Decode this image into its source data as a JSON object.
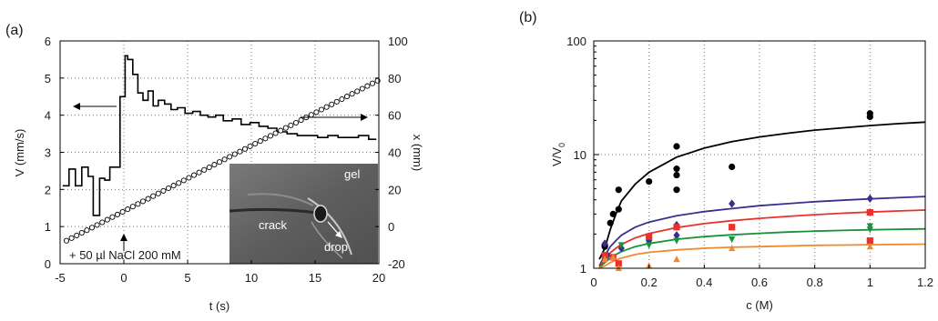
{
  "chart_data": [
    {
      "panel_label": "(a)",
      "type": "line",
      "xlabel": "t (s)",
      "ylabel": "V (mm/s)",
      "y2label": "x (mm)",
      "xlim": [
        -5,
        20
      ],
      "ylim": [
        0,
        6
      ],
      "y2lim": [
        -20,
        100
      ],
      "xticks": [
        -5,
        0,
        5,
        10,
        15,
        20
      ],
      "yticks": [
        0,
        1,
        2,
        3,
        4,
        5,
        6
      ],
      "y2ticks": [
        -20,
        0,
        20,
        40,
        60,
        80,
        100
      ],
      "grid": "dotted vertical and horizontal",
      "annotation": "+ 50 µl NaCl 200 mM",
      "inset_labels": {
        "gel": "gel",
        "crack": "crack",
        "drop": "drop"
      },
      "series": [
        {
          "axis": "left",
          "style": "step",
          "x": [
            -4.8,
            -4.3,
            -4.3,
            -3.8,
            -3.8,
            -3.3,
            -3.3,
            -2.8,
            -2.8,
            -2.4,
            -2.4,
            -1.9,
            -1.9,
            -1.5,
            -1.5,
            -1.1,
            -1.1,
            -0.3,
            -0.3,
            0.1,
            0.1,
            0.3,
            0.3,
            0.7,
            0.7,
            1.1,
            1.1,
            1.5,
            1.5,
            1.9,
            1.9,
            2.3,
            2.3,
            2.7,
            2.7,
            3.2,
            3.2,
            3.7,
            3.7,
            4.2,
            4.2,
            4.8,
            4.8,
            5.4,
            5.4,
            6,
            6,
            6.6,
            6.6,
            7.2,
            7.2,
            7.8,
            7.8,
            8.5,
            8.5,
            9.2,
            9.2,
            9.9,
            9.9,
            10.6,
            10.6,
            11.3,
            11.3,
            12,
            12,
            12.8,
            12.8,
            13.6,
            13.6,
            14.4,
            14.4,
            15.2,
            15.2,
            16,
            16,
            16.8,
            16.8,
            17.6,
            17.6,
            18.4,
            18.4,
            19.2,
            19.2,
            19.8
          ],
          "values": [
            2.1,
            2.1,
            2.55,
            2.55,
            2.1,
            2.1,
            2.6,
            2.6,
            2.35,
            2.35,
            1.3,
            1.3,
            2.3,
            2.3,
            2.25,
            2.25,
            2.6,
            2.6,
            4.5,
            4.5,
            5.6,
            5.6,
            5.5,
            5.5,
            5.1,
            5.1,
            4.6,
            4.6,
            4.4,
            4.4,
            4.65,
            4.65,
            4.25,
            4.25,
            4.4,
            4.4,
            4.3,
            4.3,
            4.15,
            4.15,
            4.2,
            4.2,
            4.05,
            4.05,
            4.1,
            4.1,
            4.0,
            4.0,
            3.95,
            3.95,
            4.0,
            4.0,
            3.85,
            3.85,
            3.9,
            3.9,
            3.75,
            3.75,
            3.8,
            3.8,
            3.7,
            3.7,
            3.65,
            3.65,
            3.55,
            3.55,
            3.5,
            3.5,
            3.45,
            3.45,
            3.45,
            3.45,
            3.4,
            3.4,
            3.45,
            3.45,
            3.4,
            3.4,
            3.4,
            3.4,
            3.45,
            3.45,
            3.35,
            3.35
          ]
        },
        {
          "axis": "right",
          "style": "open-circles",
          "x_start": -4.5,
          "x_step": 0.4,
          "count": 62,
          "y_at_x_start": -7.6,
          "y_slope": 3.53
        }
      ]
    },
    {
      "panel_label": "(b)",
      "type": "scatter",
      "xlabel": "c (M)",
      "ylabel": "V/V",
      "ylabel_sub": "0",
      "xlim": [
        0,
        1.2
      ],
      "ylim": [
        1,
        100
      ],
      "yscale": "log",
      "xticks": [
        "0",
        "0.2",
        "0.4",
        "0.6",
        "0.8",
        "1",
        "1.2"
      ],
      "yticks": [
        "1",
        "10",
        "100"
      ],
      "grid": "dotted vertical and horizontal",
      "series": [
        {
          "color": "#000000",
          "marker": "circle",
          "points": [
            [
              0.04,
              1.6
            ],
            [
              0.04,
              1.55
            ],
            [
              0.06,
              2.5
            ],
            [
              0.07,
              3.0
            ],
            [
              0.09,
              3.3
            ],
            [
              0.09,
              4.9
            ],
            [
              0.2,
              5.8
            ],
            [
              0.3,
              11.8
            ],
            [
              0.3,
              7.5
            ],
            [
              0.3,
              6.6
            ],
            [
              0.3,
              4.9
            ],
            [
              0.5,
              7.8
            ],
            [
              1.0,
              23.0
            ],
            [
              1.0,
              21.5
            ]
          ],
          "curve": [
            [
              0.02,
              1.2
            ],
            [
              0.04,
              1.5
            ],
            [
              0.06,
              2.2
            ],
            [
              0.08,
              3.0
            ],
            [
              0.1,
              3.9
            ],
            [
              0.15,
              5.5
            ],
            [
              0.2,
              7.0
            ],
            [
              0.3,
              9.5
            ],
            [
              0.4,
              11.4
            ],
            [
              0.5,
              13.0
            ],
            [
              0.6,
              14.3
            ],
            [
              0.7,
              15.4
            ],
            [
              0.8,
              16.4
            ],
            [
              0.9,
              17.2
            ],
            [
              1.0,
              18.0
            ],
            [
              1.1,
              18.7
            ],
            [
              1.2,
              19.3
            ]
          ]
        },
        {
          "color": "#3a2f8f",
          "marker": "diamond",
          "points": [
            [
              0.04,
              1.65
            ],
            [
              0.05,
              1.3
            ],
            [
              0.1,
              1.5
            ],
            [
              0.2,
              1.75
            ],
            [
              0.3,
              2.4
            ],
            [
              0.3,
              1.95
            ],
            [
              0.5,
              3.7
            ],
            [
              1.0,
              4.1
            ]
          ],
          "curve": [
            [
              0.02,
              1.05
            ],
            [
              0.04,
              1.3
            ],
            [
              0.06,
              1.55
            ],
            [
              0.08,
              1.75
            ],
            [
              0.1,
              1.95
            ],
            [
              0.15,
              2.3
            ],
            [
              0.2,
              2.55
            ],
            [
              0.3,
              2.9
            ],
            [
              0.4,
              3.15
            ],
            [
              0.5,
              3.35
            ],
            [
              0.6,
              3.55
            ],
            [
              0.7,
              3.7
            ],
            [
              0.8,
              3.85
            ],
            [
              0.9,
              3.97
            ],
            [
              1.0,
              4.08
            ],
            [
              1.1,
              4.18
            ],
            [
              1.2,
              4.28
            ]
          ]
        },
        {
          "color": "#e8322b",
          "marker": "square",
          "points": [
            [
              0.04,
              1.3
            ],
            [
              0.07,
              1.25
            ],
            [
              0.09,
              1.1
            ],
            [
              0.2,
              1.9
            ],
            [
              0.3,
              2.3
            ],
            [
              0.5,
              2.3
            ],
            [
              1.0,
              3.1
            ],
            [
              1.0,
              1.75
            ]
          ],
          "curve": [
            [
              0.02,
              1.02
            ],
            [
              0.04,
              1.2
            ],
            [
              0.06,
              1.37
            ],
            [
              0.08,
              1.5
            ],
            [
              0.1,
              1.62
            ],
            [
              0.15,
              1.85
            ],
            [
              0.2,
              2.02
            ],
            [
              0.3,
              2.28
            ],
            [
              0.4,
              2.47
            ],
            [
              0.5,
              2.62
            ],
            [
              0.6,
              2.75
            ],
            [
              0.7,
              2.86
            ],
            [
              0.8,
              2.96
            ],
            [
              0.9,
              3.05
            ],
            [
              1.0,
              3.12
            ],
            [
              1.1,
              3.19
            ],
            [
              1.2,
              3.25
            ]
          ]
        },
        {
          "color": "#19913a",
          "marker": "triangle-down",
          "points": [
            [
              0.1,
              1.6
            ],
            [
              0.2,
              1.6
            ],
            [
              0.3,
              1.75
            ],
            [
              0.5,
              1.8
            ],
            [
              1.0,
              2.35
            ],
            [
              1.0,
              2.2
            ]
          ],
          "curve": [
            [
              0.02,
              1.01
            ],
            [
              0.04,
              1.12
            ],
            [
              0.06,
              1.23
            ],
            [
              0.08,
              1.32
            ],
            [
              0.1,
              1.4
            ],
            [
              0.15,
              1.55
            ],
            [
              0.2,
              1.65
            ],
            [
              0.3,
              1.8
            ],
            [
              0.4,
              1.9
            ],
            [
              0.5,
              1.97
            ],
            [
              0.6,
              2.03
            ],
            [
              0.7,
              2.08
            ],
            [
              0.8,
              2.12
            ],
            [
              0.9,
              2.15
            ],
            [
              1.0,
              2.18
            ],
            [
              1.1,
              2.2
            ],
            [
              1.2,
              2.22
            ]
          ]
        },
        {
          "color": "#f08a2c",
          "marker": "triangle-up",
          "points": [
            [
              0.04,
              1.2
            ],
            [
              0.07,
              1.25
            ],
            [
              0.09,
              1.0
            ],
            [
              0.2,
              1.05
            ],
            [
              0.3,
              1.2
            ],
            [
              0.5,
              1.5
            ],
            [
              1.0,
              1.55
            ]
          ],
          "curve": [
            [
              0.02,
              1.0
            ],
            [
              0.04,
              1.05
            ],
            [
              0.06,
              1.12
            ],
            [
              0.08,
              1.18
            ],
            [
              0.1,
              1.23
            ],
            [
              0.15,
              1.32
            ],
            [
              0.2,
              1.38
            ],
            [
              0.3,
              1.45
            ],
            [
              0.4,
              1.5
            ],
            [
              0.5,
              1.53
            ],
            [
              0.6,
              1.55
            ],
            [
              0.7,
              1.57
            ],
            [
              0.8,
              1.59
            ],
            [
              0.9,
              1.6
            ],
            [
              1.0,
              1.61
            ],
            [
              1.1,
              1.62
            ],
            [
              1.2,
              1.63
            ]
          ]
        }
      ]
    }
  ]
}
